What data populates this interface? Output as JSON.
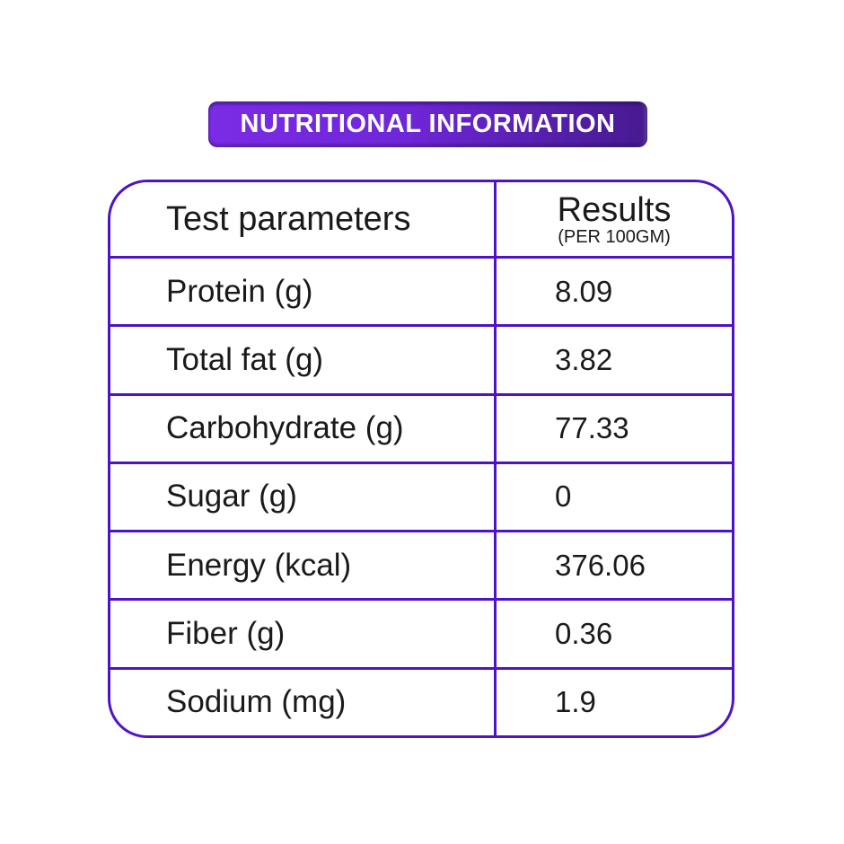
{
  "banner": {
    "title": "NUTRITIONAL INFORMATION"
  },
  "table": {
    "header": {
      "col1": "Test parameters",
      "col2": "Results",
      "col2_sub": "(PER 100GM)"
    },
    "rows": [
      {
        "label": "Protein (g)",
        "value": "8.09"
      },
      {
        "label": "Total fat (g)",
        "value": "3.82"
      },
      {
        "label": "Carbohydrate (g)",
        "value": "77.33"
      },
      {
        "label": "Sugar (g)",
        "value": "0"
      },
      {
        "label": "Energy (kcal)",
        "value": "376.06"
      },
      {
        "label": "Fiber (g)",
        "value": "0.36"
      },
      {
        "label": "Sodium (mg)",
        "value": "1.9"
      }
    ]
  },
  "colors": {
    "table_border": "#4f13c6",
    "banner_gradient_left": "#7b2ce6",
    "banner_gradient_right": "#451a8e",
    "banner_text": "#ffffff",
    "body_text": "#1a1a1a",
    "background": "#ffffff"
  }
}
